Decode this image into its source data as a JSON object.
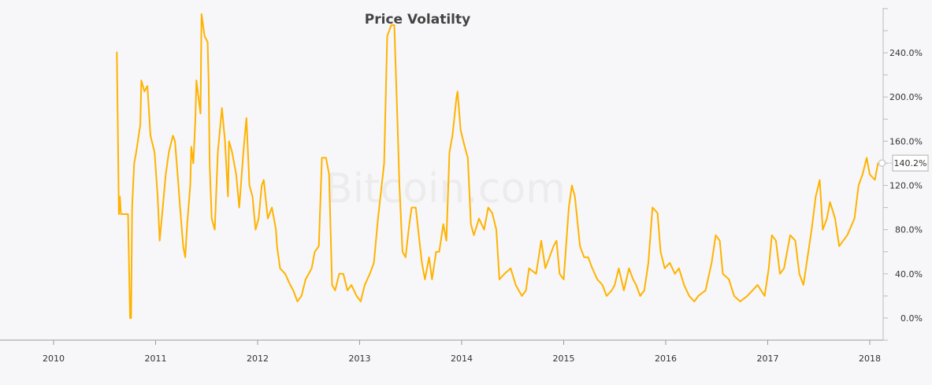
{
  "chart_data": {
    "type": "line",
    "title": "Price Volatilty",
    "watermark": "Bitcoin.com",
    "xlabel": "",
    "ylabel": "",
    "x_ticks": [
      "2010",
      "2011",
      "2012",
      "2013",
      "2014",
      "2015",
      "2016",
      "2017",
      "2018"
    ],
    "y_ticks": [
      "0.0%",
      "40.0%",
      "80.0%",
      "120.0%",
      "160.0%",
      "200.0%",
      "240.0%"
    ],
    "xlim": [
      2009.9,
      2018.12
    ],
    "ylim": [
      -20,
      280
    ],
    "y_axis_position": "right",
    "grid": false,
    "line_color": "#ffb300",
    "tooltip": {
      "x": 2018.12,
      "value": 140.2,
      "label": "140.2%"
    },
    "series": [
      {
        "points": [
          [
            2010.62,
            241
          ],
          [
            2010.63,
            170
          ],
          [
            2010.64,
            94
          ],
          [
            2010.65,
            110
          ],
          [
            2010.66,
            94
          ],
          [
            2010.73,
            94
          ],
          [
            2010.75,
            0
          ],
          [
            2010.76,
            0
          ],
          [
            2010.77,
            100
          ],
          [
            2010.79,
            140
          ],
          [
            2010.81,
            150
          ],
          [
            2010.85,
            175
          ],
          [
            2010.86,
            215
          ],
          [
            2010.89,
            205
          ],
          [
            2010.92,
            210
          ],
          [
            2010.95,
            165
          ],
          [
            2010.99,
            150
          ],
          [
            2011.02,
            110
          ],
          [
            2011.04,
            70
          ],
          [
            2011.06,
            90
          ],
          [
            2011.1,
            130
          ],
          [
            2011.13,
            150
          ],
          [
            2011.17,
            165
          ],
          [
            2011.19,
            160
          ],
          [
            2011.22,
            125
          ],
          [
            2011.24,
            100
          ],
          [
            2011.27,
            65
          ],
          [
            2011.29,
            55
          ],
          [
            2011.31,
            85
          ],
          [
            2011.34,
            120
          ],
          [
            2011.35,
            155
          ],
          [
            2011.37,
            140
          ],
          [
            2011.39,
            180
          ],
          [
            2011.4,
            215
          ],
          [
            2011.42,
            200
          ],
          [
            2011.44,
            185
          ],
          [
            2011.45,
            275
          ],
          [
            2011.48,
            255
          ],
          [
            2011.51,
            250
          ],
          [
            2011.52,
            215
          ],
          [
            2011.53,
            140
          ],
          [
            2011.55,
            90
          ],
          [
            2011.58,
            80
          ],
          [
            2011.61,
            150
          ],
          [
            2011.65,
            190
          ],
          [
            2011.68,
            160
          ],
          [
            2011.71,
            110
          ],
          [
            2011.72,
            160
          ],
          [
            2011.75,
            150
          ],
          [
            2011.79,
            130
          ],
          [
            2011.82,
            100
          ],
          [
            2011.86,
            150
          ],
          [
            2011.89,
            181
          ],
          [
            2011.92,
            120
          ],
          [
            2011.95,
            110
          ],
          [
            2011.98,
            80
          ],
          [
            2012.01,
            90
          ],
          [
            2012.04,
            120
          ],
          [
            2012.06,
            125
          ],
          [
            2012.1,
            90
          ],
          [
            2012.14,
            100
          ],
          [
            2012.18,
            80
          ],
          [
            2012.19,
            65
          ],
          [
            2012.22,
            45
          ],
          [
            2012.27,
            40
          ],
          [
            2012.32,
            30
          ],
          [
            2012.35,
            25
          ],
          [
            2012.39,
            15
          ],
          [
            2012.43,
            20
          ],
          [
            2012.47,
            35
          ],
          [
            2012.53,
            45
          ],
          [
            2012.56,
            60
          ],
          [
            2012.6,
            65
          ],
          [
            2012.63,
            145
          ],
          [
            2012.67,
            145
          ],
          [
            2012.7,
            130
          ],
          [
            2012.73,
            30
          ],
          [
            2012.76,
            25
          ],
          [
            2012.8,
            40
          ],
          [
            2012.84,
            40
          ],
          [
            2012.88,
            25
          ],
          [
            2012.92,
            30
          ],
          [
            2012.97,
            20
          ],
          [
            2013.01,
            15
          ],
          [
            2013.05,
            30
          ],
          [
            2013.1,
            40
          ],
          [
            2013.14,
            50
          ],
          [
            2013.18,
            90
          ],
          [
            2013.24,
            140
          ],
          [
            2013.27,
            255
          ],
          [
            2013.31,
            265
          ],
          [
            2013.34,
            265
          ],
          [
            2013.37,
            180
          ],
          [
            2013.39,
            120
          ],
          [
            2013.42,
            60
          ],
          [
            2013.45,
            55
          ],
          [
            2013.48,
            80
          ],
          [
            2013.51,
            100
          ],
          [
            2013.55,
            100
          ],
          [
            2013.61,
            50
          ],
          [
            2013.64,
            35
          ],
          [
            2013.68,
            55
          ],
          [
            2013.71,
            35
          ],
          [
            2013.75,
            60
          ],
          [
            2013.78,
            60
          ],
          [
            2013.82,
            85
          ],
          [
            2013.85,
            70
          ],
          [
            2013.88,
            150
          ],
          [
            2013.91,
            165
          ],
          [
            2013.95,
            200
          ],
          [
            2013.96,
            205
          ],
          [
            2013.99,
            170
          ],
          [
            2014.03,
            155
          ],
          [
            2014.06,
            145
          ],
          [
            2014.09,
            85
          ],
          [
            2014.12,
            75
          ],
          [
            2014.17,
            90
          ],
          [
            2014.22,
            80
          ],
          [
            2014.26,
            100
          ],
          [
            2014.3,
            95
          ],
          [
            2014.34,
            80
          ],
          [
            2014.37,
            35
          ],
          [
            2014.42,
            40
          ],
          [
            2014.48,
            45
          ],
          [
            2014.53,
            30
          ],
          [
            2014.59,
            20
          ],
          [
            2014.63,
            25
          ],
          [
            2014.66,
            45
          ],
          [
            2014.73,
            40
          ],
          [
            2014.78,
            70
          ],
          [
            2014.82,
            45
          ],
          [
            2014.86,
            55
          ],
          [
            2014.9,
            65
          ],
          [
            2014.93,
            70
          ],
          [
            2014.96,
            40
          ],
          [
            2015.0,
            35
          ],
          [
            2015.05,
            100
          ],
          [
            2015.08,
            120
          ],
          [
            2015.11,
            110
          ],
          [
            2015.16,
            65
          ],
          [
            2015.2,
            55
          ],
          [
            2015.24,
            55
          ],
          [
            2015.28,
            45
          ],
          [
            2015.33,
            35
          ],
          [
            2015.38,
            30
          ],
          [
            2015.42,
            20
          ],
          [
            2015.47,
            25
          ],
          [
            2015.5,
            30
          ],
          [
            2015.54,
            45
          ],
          [
            2015.59,
            25
          ],
          [
            2015.64,
            45
          ],
          [
            2015.68,
            35
          ],
          [
            2015.71,
            30
          ],
          [
            2015.75,
            20
          ],
          [
            2015.79,
            25
          ],
          [
            2015.83,
            50
          ],
          [
            2015.87,
            100
          ],
          [
            2015.92,
            95
          ],
          [
            2015.95,
            60
          ],
          [
            2015.99,
            45
          ],
          [
            2016.04,
            50
          ],
          [
            2016.09,
            40
          ],
          [
            2016.13,
            45
          ],
          [
            2016.18,
            30
          ],
          [
            2016.23,
            20
          ],
          [
            2016.28,
            15
          ],
          [
            2016.32,
            20
          ],
          [
            2016.39,
            25
          ],
          [
            2016.45,
            50
          ],
          [
            2016.49,
            75
          ],
          [
            2016.53,
            70
          ],
          [
            2016.56,
            40
          ],
          [
            2016.62,
            35
          ],
          [
            2016.67,
            20
          ],
          [
            2016.73,
            15
          ],
          [
            2016.8,
            20
          ],
          [
            2016.85,
            25
          ],
          [
            2016.9,
            30
          ],
          [
            2016.97,
            20
          ],
          [
            2017.01,
            45
          ],
          [
            2017.04,
            75
          ],
          [
            2017.08,
            70
          ],
          [
            2017.12,
            40
          ],
          [
            2017.16,
            45
          ],
          [
            2017.22,
            75
          ],
          [
            2017.27,
            70
          ],
          [
            2017.31,
            40
          ],
          [
            2017.35,
            30
          ],
          [
            2017.39,
            55
          ],
          [
            2017.43,
            80
          ],
          [
            2017.47,
            110
          ],
          [
            2017.51,
            125
          ],
          [
            2017.54,
            80
          ],
          [
            2017.58,
            90
          ],
          [
            2017.61,
            105
          ],
          [
            2017.66,
            90
          ],
          [
            2017.7,
            65
          ],
          [
            2017.74,
            70
          ],
          [
            2017.78,
            75
          ],
          [
            2017.85,
            90
          ],
          [
            2017.89,
            120
          ],
          [
            2017.93,
            130
          ],
          [
            2017.97,
            145
          ],
          [
            2018.0,
            130
          ],
          [
            2018.05,
            125
          ],
          [
            2018.08,
            140
          ],
          [
            2018.12,
            140.2
          ]
        ]
      }
    ]
  }
}
